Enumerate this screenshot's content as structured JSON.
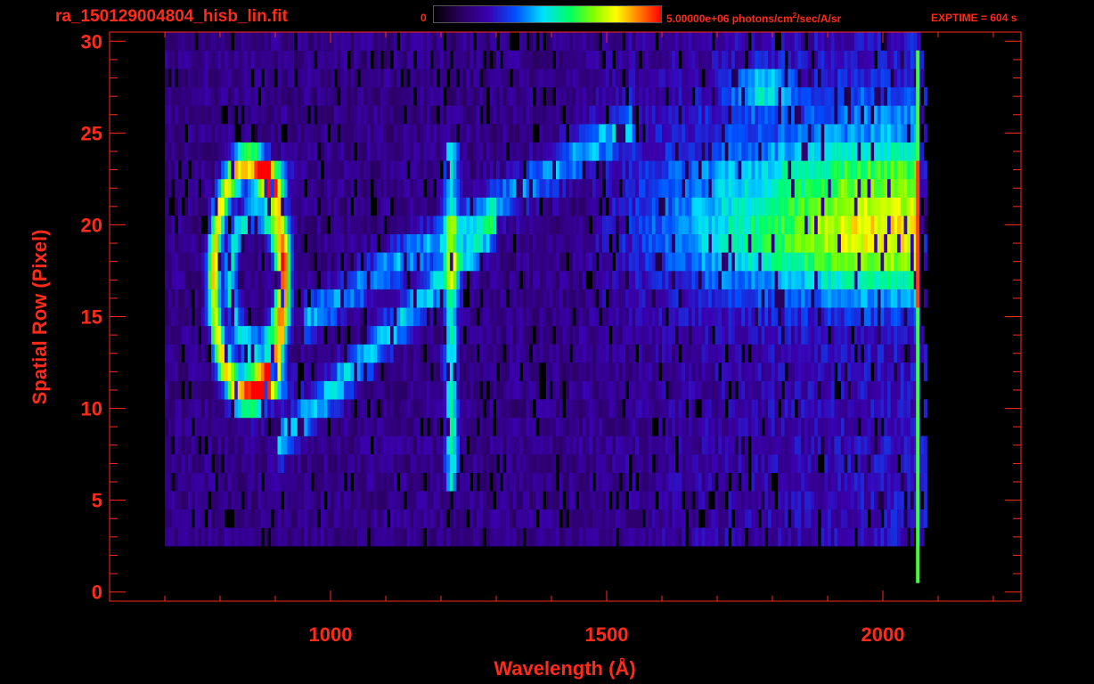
{
  "header": {
    "title": "ra_150129004804_hisb_lin.fit",
    "colorbar_min": "0",
    "colorbar_max_value": "5.00000e+06 photons/cm",
    "colorbar_max_exp": "2",
    "colorbar_max_unit": "/sec/A/sr",
    "exptime": "EXPTIME = 604 s"
  },
  "colors": {
    "axis": "#ff2a1a",
    "background": "#000000"
  },
  "chart_data": {
    "type": "heatmap",
    "xlabel": "Wavelength (Å)",
    "ylabel": "Spatial Row (Pixel)",
    "xlim": [
      600,
      2250
    ],
    "ylim": [
      -0.5,
      30.5
    ],
    "x_ticks": [
      "1000",
      "1500",
      "2000"
    ],
    "y_ticks": [
      "0",
      "5",
      "10",
      "15",
      "20",
      "25",
      "30"
    ],
    "colorbar_range": [
      0,
      5000000
    ],
    "colormap": "rainbow",
    "features": [
      {
        "wavelength": 805,
        "rows": [
          11,
          24
        ],
        "level": 0.8
      },
      {
        "wavelength": 890,
        "rows": [
          11,
          23
        ],
        "level": 0.95
      },
      {
        "wavelength": 1216,
        "rows": [
          6,
          24
        ],
        "level": 0.5
      },
      {
        "wavelength_range": [
          1550,
          2060
        ],
        "rows": [
          16,
          23
        ],
        "level": 0.7
      }
    ]
  }
}
